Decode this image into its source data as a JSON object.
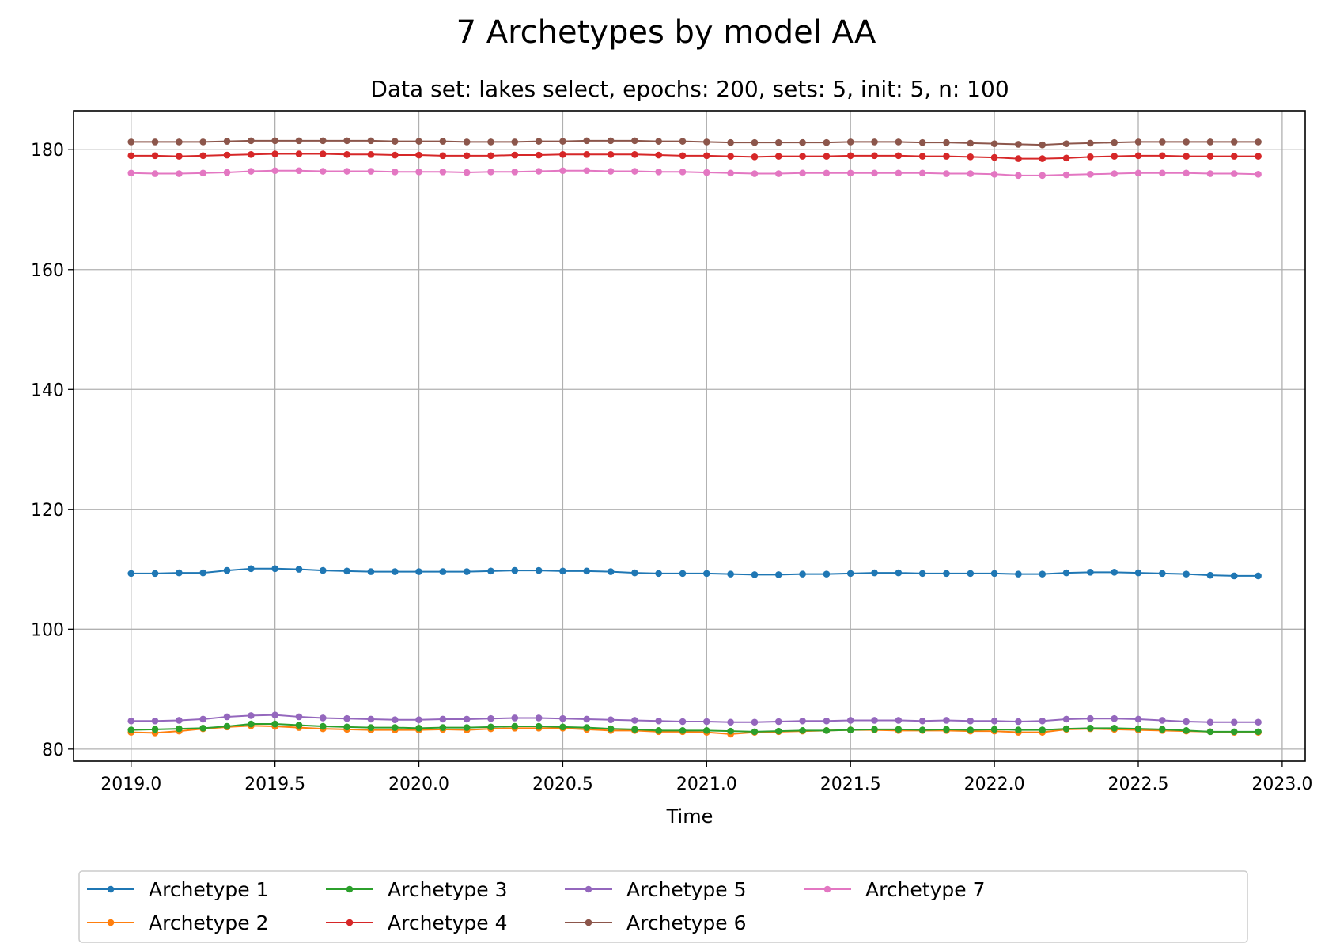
{
  "chart_data": {
    "type": "line",
    "title": "7 Archetypes by model AA",
    "subtitle": "Data set: lakes select, epochs: 200, sets: 5, init: 5, n: 100",
    "xlabel": "Time",
    "ylabel": "",
    "xlim": [
      2018.8,
      2023.08
    ],
    "ylim": [
      78,
      186.5
    ],
    "xticks": [
      2019.0,
      2019.5,
      2020.0,
      2020.5,
      2021.0,
      2021.5,
      2022.0,
      2022.5,
      2023.0
    ],
    "xtick_labels": [
      "2019.0",
      "2019.5",
      "2020.0",
      "2020.5",
      "2021.0",
      "2021.5",
      "2022.0",
      "2022.5",
      "2023.0"
    ],
    "yticks": [
      80,
      100,
      120,
      140,
      160,
      180
    ],
    "ytick_labels": [
      "80",
      "100",
      "120",
      "140",
      "160",
      "180"
    ],
    "grid": true,
    "legend_position": "bottom-center",
    "x": [
      2019.0,
      2019.0833,
      2019.1667,
      2019.25,
      2019.3333,
      2019.4167,
      2019.5,
      2019.5833,
      2019.6667,
      2019.75,
      2019.8333,
      2019.9167,
      2020.0,
      2020.0833,
      2020.1667,
      2020.25,
      2020.3333,
      2020.4167,
      2020.5,
      2020.5833,
      2020.6667,
      2020.75,
      2020.8333,
      2020.9167,
      2021.0,
      2021.0833,
      2021.1667,
      2021.25,
      2021.3333,
      2021.4167,
      2021.5,
      2021.5833,
      2021.6667,
      2021.75,
      2021.8333,
      2021.9167,
      2022.0,
      2022.0833,
      2022.1667,
      2022.25,
      2022.3333,
      2022.4167,
      2022.5,
      2022.5833,
      2022.6667,
      2022.75,
      2022.8333,
      2022.9167
    ],
    "series": [
      {
        "name": "Archetype 1",
        "color": "#1f77b4",
        "values": [
          109.3,
          109.3,
          109.4,
          109.4,
          109.8,
          110.1,
          110.1,
          110.0,
          109.8,
          109.7,
          109.6,
          109.6,
          109.6,
          109.6,
          109.6,
          109.7,
          109.8,
          109.8,
          109.7,
          109.7,
          109.6,
          109.4,
          109.3,
          109.3,
          109.3,
          109.2,
          109.1,
          109.1,
          109.2,
          109.2,
          109.3,
          109.4,
          109.4,
          109.3,
          109.3,
          109.3,
          109.3,
          109.2,
          109.2,
          109.4,
          109.5,
          109.5,
          109.4,
          109.3,
          109.2,
          109.0,
          108.9,
          108.9
        ]
      },
      {
        "name": "Archetype 2",
        "color": "#ff7f0e",
        "values": [
          82.8,
          82.7,
          83.0,
          83.4,
          83.7,
          83.9,
          83.8,
          83.6,
          83.4,
          83.3,
          83.2,
          83.2,
          83.2,
          83.3,
          83.2,
          83.4,
          83.5,
          83.5,
          83.5,
          83.3,
          83.1,
          83.1,
          82.9,
          82.9,
          82.8,
          82.5,
          82.8,
          82.9,
          83.0,
          83.1,
          83.2,
          83.2,
          83.1,
          83.1,
          83.1,
          83.0,
          83.0,
          82.8,
          82.8,
          83.3,
          83.4,
          83.3,
          83.2,
          83.1,
          83.0,
          82.9,
          82.8,
          82.8
        ]
      },
      {
        "name": "Archetype 3",
        "color": "#2ca02c",
        "values": [
          83.2,
          83.3,
          83.4,
          83.5,
          83.8,
          84.2,
          84.2,
          84.0,
          83.8,
          83.7,
          83.6,
          83.6,
          83.5,
          83.6,
          83.6,
          83.7,
          83.8,
          83.8,
          83.7,
          83.6,
          83.4,
          83.3,
          83.1,
          83.1,
          83.1,
          83.0,
          82.9,
          83.0,
          83.1,
          83.1,
          83.2,
          83.3,
          83.3,
          83.2,
          83.3,
          83.2,
          83.3,
          83.2,
          83.2,
          83.4,
          83.5,
          83.5,
          83.4,
          83.3,
          83.1,
          82.9,
          82.9,
          82.9
        ]
      },
      {
        "name": "Archetype 4",
        "color": "#d62728",
        "values": [
          179.0,
          179.0,
          178.9,
          179.0,
          179.1,
          179.2,
          179.3,
          179.3,
          179.3,
          179.2,
          179.2,
          179.1,
          179.1,
          179.0,
          179.0,
          179.0,
          179.1,
          179.1,
          179.2,
          179.2,
          179.2,
          179.2,
          179.1,
          179.0,
          179.0,
          178.9,
          178.8,
          178.9,
          178.9,
          178.9,
          179.0,
          179.0,
          179.0,
          178.9,
          178.9,
          178.8,
          178.7,
          178.5,
          178.5,
          178.6,
          178.8,
          178.9,
          179.0,
          179.0,
          178.9,
          178.9,
          178.9,
          178.9
        ]
      },
      {
        "name": "Archetype 5",
        "color": "#9467bd",
        "values": [
          84.7,
          84.7,
          84.8,
          85.0,
          85.4,
          85.6,
          85.7,
          85.4,
          85.2,
          85.1,
          85.0,
          84.9,
          84.9,
          85.0,
          85.0,
          85.1,
          85.2,
          85.2,
          85.1,
          85.0,
          84.9,
          84.8,
          84.7,
          84.6,
          84.6,
          84.5,
          84.5,
          84.6,
          84.7,
          84.7,
          84.8,
          84.8,
          84.8,
          84.7,
          84.8,
          84.7,
          84.7,
          84.6,
          84.7,
          85.0,
          85.1,
          85.1,
          85.0,
          84.8,
          84.6,
          84.5,
          84.5,
          84.5
        ]
      },
      {
        "name": "Archetype 6",
        "color": "#8c564b",
        "values": [
          181.3,
          181.3,
          181.3,
          181.3,
          181.4,
          181.5,
          181.5,
          181.5,
          181.5,
          181.5,
          181.5,
          181.4,
          181.4,
          181.4,
          181.3,
          181.3,
          181.3,
          181.4,
          181.4,
          181.5,
          181.5,
          181.5,
          181.4,
          181.4,
          181.3,
          181.2,
          181.2,
          181.2,
          181.2,
          181.2,
          181.3,
          181.3,
          181.3,
          181.2,
          181.2,
          181.1,
          181.0,
          180.9,
          180.8,
          181.0,
          181.1,
          181.2,
          181.3,
          181.3,
          181.3,
          181.3,
          181.3,
          181.3
        ]
      },
      {
        "name": "Archetype 7",
        "color": "#e377c2",
        "values": [
          176.1,
          176.0,
          176.0,
          176.1,
          176.2,
          176.4,
          176.5,
          176.5,
          176.4,
          176.4,
          176.4,
          176.3,
          176.3,
          176.3,
          176.2,
          176.3,
          176.3,
          176.4,
          176.5,
          176.5,
          176.4,
          176.4,
          176.3,
          176.3,
          176.2,
          176.1,
          176.0,
          176.0,
          176.1,
          176.1,
          176.1,
          176.1,
          176.1,
          176.1,
          176.0,
          176.0,
          175.9,
          175.7,
          175.7,
          175.8,
          175.9,
          176.0,
          176.1,
          176.1,
          176.1,
          176.0,
          176.0,
          175.9
        ]
      }
    ]
  }
}
